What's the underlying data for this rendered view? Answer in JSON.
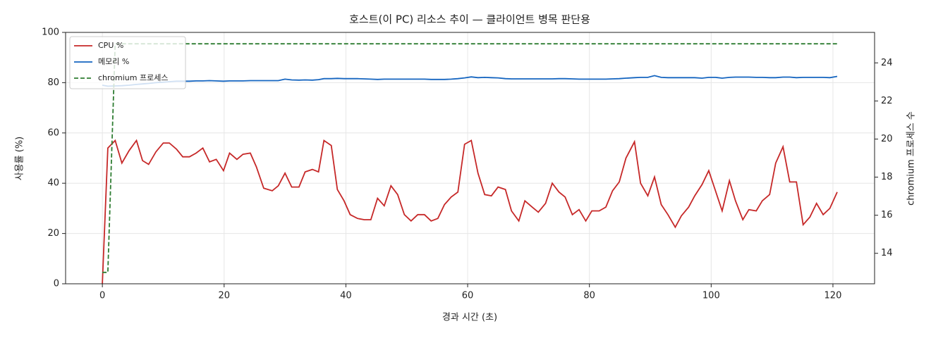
{
  "chart_data": {
    "type": "line",
    "title": "호스트(이 PC) 리소스 추이 — 클라이언트 병목 판단용",
    "xlabel": "경과 시간 (초)",
    "ylabel": "사용률 (%)",
    "y2label": "chromium 프로세스 수",
    "x": [
      0,
      0.9,
      2.1,
      3.2,
      4.4,
      5.6,
      6.6,
      7.6,
      8.8,
      10.0,
      11.0,
      12.2,
      13.2,
      14.3,
      15.4,
      16.5,
      17.6,
      18.7,
      19.9,
      20.9,
      22.1,
      23.1,
      24.3,
      25.3,
      26.5,
      27.9,
      28.9,
      30.0,
      31.1,
      32.3,
      33.3,
      34.5,
      35.5,
      36.4,
      37.6,
      38.6,
      39.7,
      40.7,
      41.9,
      43.0,
      44.1,
      45.2,
      46.3,
      47.4,
      48.5,
      49.6,
      50.7,
      51.8,
      52.9,
      54.0,
      55.1,
      56.2,
      57.3,
      58.4,
      59.5,
      60.6,
      61.7,
      62.8,
      63.9,
      65.0,
      66.2,
      67.2,
      68.4,
      69.4,
      70.6,
      71.6,
      72.8,
      73.9,
      75.0,
      76.0,
      77.2,
      78.3,
      79.4,
      80.4,
      81.6,
      82.7,
      83.8,
      84.9,
      86.0,
      87.4,
      88.4,
      89.6,
      90.7,
      91.8,
      92.9,
      94.1,
      95.1,
      96.3,
      97.3,
      98.5,
      99.6,
      100.7,
      101.8,
      103.0,
      104.0,
      105.2,
      106.2,
      107.4,
      108.4,
      109.6,
      110.6,
      111.8,
      112.9,
      114.0,
      115.1,
      116.2,
      117.3,
      118.4,
      119.5,
      120.7
    ],
    "series": [
      {
        "name": "CPU %",
        "color": "#c62828",
        "style": "solid",
        "values": [
          0,
          54,
          57,
          48,
          53,
          57,
          49,
          47.5,
          52.5,
          56,
          56,
          53.5,
          50.5,
          50.5,
          52,
          54,
          48.5,
          49.5,
          45,
          52,
          49.5,
          51.5,
          52,
          46.5,
          38,
          37,
          39,
          44,
          38.5,
          38.5,
          44.5,
          45.5,
          44.5,
          57,
          55,
          37.5,
          33,
          27.5,
          26,
          25.5,
          25.5,
          34,
          31,
          39,
          35.5,
          27.5,
          25,
          27.5,
          27.5,
          25,
          26,
          31.5,
          34.5,
          36.5,
          55.5,
          57,
          44,
          35.5,
          35,
          38.5,
          37.5,
          29,
          25,
          33,
          30.5,
          28.5,
          32,
          40,
          36.5,
          34.5,
          27.5,
          29.5,
          25,
          29,
          29,
          30.5,
          37,
          40.5,
          50,
          56.5,
          40,
          35,
          42.5,
          31.5,
          27.5,
          22.5,
          27,
          30.5,
          35,
          39.5,
          45,
          37,
          29,
          41,
          33,
          25.5,
          29.5,
          29,
          33,
          35.5,
          48,
          54.5,
          40.5,
          40.5,
          23.5,
          26.5,
          32,
          27.5,
          30,
          36.5
        ]
      },
      {
        "name": "메모리 %",
        "color": "#1565c0",
        "style": "solid",
        "values": [
          79,
          78.6,
          78.7,
          78.8,
          79,
          79.3,
          79.5,
          79.7,
          80,
          80.2,
          80.4,
          80.6,
          80.6,
          80.6,
          80.7,
          80.7,
          80.8,
          80.7,
          80.6,
          80.7,
          80.7,
          80.7,
          80.8,
          80.8,
          80.8,
          80.8,
          80.8,
          81.4,
          81.1,
          81,
          81.1,
          81,
          81.2,
          81.6,
          81.6,
          81.7,
          81.6,
          81.6,
          81.6,
          81.5,
          81.4,
          81.3,
          81.4,
          81.4,
          81.4,
          81.4,
          81.4,
          81.4,
          81.4,
          81.3,
          81.3,
          81.3,
          81.4,
          81.6,
          81.9,
          82.3,
          82,
          82.1,
          82,
          81.9,
          81.6,
          81.5,
          81.5,
          81.5,
          81.5,
          81.5,
          81.5,
          81.5,
          81.6,
          81.6,
          81.5,
          81.4,
          81.4,
          81.4,
          81.4,
          81.4,
          81.5,
          81.6,
          81.8,
          82,
          82.1,
          82.1,
          82.8,
          82.1,
          82,
          82,
          82,
          82,
          82,
          81.8,
          82.1,
          82.1,
          81.8,
          82.1,
          82.2,
          82.2,
          82.2,
          82.1,
          82.1,
          82,
          82,
          82.2,
          82.2,
          82,
          82.1,
          82.1,
          82.1,
          82.1,
          82,
          82.5
        ]
      },
      {
        "name": "chromium 프로세스",
        "color": "#2e7d32",
        "style": "dashed",
        "axis": "y2",
        "values": [
          13,
          13,
          25,
          25,
          25,
          25,
          25,
          25,
          25,
          25,
          25,
          25,
          25,
          25,
          25,
          25,
          25,
          25,
          25,
          25,
          25,
          25,
          25,
          25,
          25,
          25,
          25,
          25,
          25,
          25,
          25,
          25,
          25,
          25,
          25,
          25,
          25,
          25,
          25,
          25,
          25,
          25,
          25,
          25,
          25,
          25,
          25,
          25,
          25,
          25,
          25,
          25,
          25,
          25,
          25,
          25,
          25,
          25,
          25,
          25,
          25,
          25,
          25,
          25,
          25,
          25,
          25,
          25,
          25,
          25,
          25,
          25,
          25,
          25,
          25,
          25,
          25,
          25,
          25,
          25,
          25,
          25,
          25,
          25,
          25,
          25,
          25,
          25,
          25,
          25,
          25,
          25,
          25,
          25,
          25,
          25,
          25,
          25,
          25,
          25,
          25,
          25,
          25,
          25,
          25,
          25,
          25,
          25,
          25,
          25
        ]
      }
    ],
    "xlim": [
      -6.04,
      126.84
    ],
    "xticks": [
      0,
      20,
      40,
      60,
      80,
      100,
      120
    ],
    "ylim": [
      0,
      100
    ],
    "yticks": [
      0,
      20,
      40,
      60,
      80,
      100
    ],
    "y2lim": [
      12.4,
      25.6
    ],
    "y2ticks": [
      14,
      16,
      18,
      20,
      22,
      24
    ],
    "grid": true,
    "legend": "upper left"
  }
}
